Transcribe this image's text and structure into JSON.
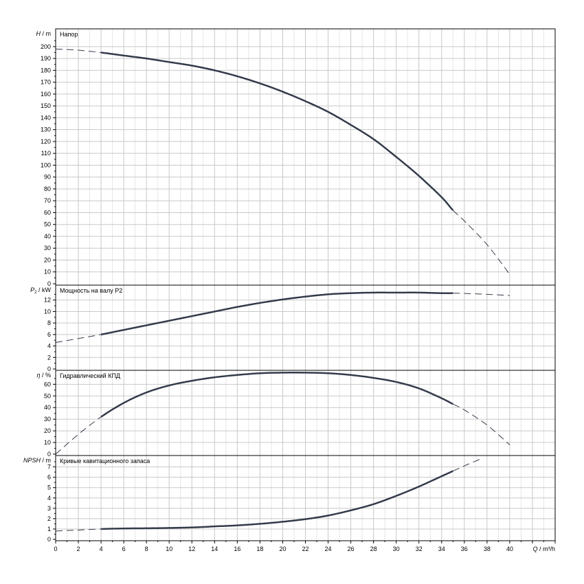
{
  "chart_data": {
    "type": "line",
    "grid": true,
    "x": {
      "label_q": "Q",
      "label_sep": " / ",
      "label_unit": "m³/h",
      "range": [
        0,
        44
      ],
      "ticks": [
        0,
        2,
        4,
        6,
        8,
        10,
        12,
        14,
        16,
        18,
        20,
        22,
        24,
        26,
        28,
        30,
        32,
        34,
        36,
        38,
        40
      ]
    },
    "panels": [
      {
        "id": "head",
        "ylabel_sym": "H",
        "ylabel_sub": "",
        "ylabel_unit": "m",
        "title": "Напор",
        "ylim": [
          0,
          215
        ],
        "yticks": [
          0,
          10,
          20,
          30,
          40,
          50,
          60,
          70,
          80,
          90,
          100,
          110,
          120,
          130,
          140,
          150,
          160,
          170,
          180,
          190,
          200
        ],
        "solid_range": [
          4,
          35
        ],
        "series": [
          {
            "x": [
              0,
              2,
              4,
              6,
              8,
              10,
              12,
              14,
              16,
              18,
              20,
              22,
              24,
              26,
              28,
              30,
              32,
              34,
              35,
              36,
              38,
              40
            ],
            "y": [
              198,
              197,
              195,
              192.5,
              190,
              187,
              184,
              180,
              175,
              169,
              162,
              154,
              145,
              134,
              122,
              107,
              91,
              73,
              62,
              53,
              33,
              8
            ]
          }
        ]
      },
      {
        "id": "power",
        "ylabel_sym": "P",
        "ylabel_sub": "2",
        "ylabel_unit": "kW",
        "title": "Мощность на валу P2",
        "ylim": [
          0,
          14.6
        ],
        "yticks": [
          0,
          2,
          4,
          6,
          8,
          10,
          12
        ],
        "solid_range": [
          4,
          35
        ],
        "series": [
          {
            "x": [
              0,
              2,
              4,
              6,
              8,
              10,
              12,
              14,
              16,
              18,
              20,
              22,
              24,
              26,
              28,
              30,
              32,
              34,
              35,
              36,
              38,
              40
            ],
            "y": [
              4.6,
              5.3,
              6.0,
              6.8,
              7.6,
              8.4,
              9.2,
              10.0,
              10.8,
              11.5,
              12.1,
              12.6,
              13.0,
              13.2,
              13.3,
              13.3,
              13.3,
              13.2,
              13.2,
              13.15,
              13.0,
              12.8
            ]
          }
        ]
      },
      {
        "id": "efficiency",
        "ylabel_sym": "η",
        "ylabel_sub": "",
        "ylabel_unit": "%",
        "title": "Гидравлический КПД",
        "ylim": [
          0,
          72
        ],
        "yticks": [
          0,
          10,
          20,
          30,
          40,
          50,
          60
        ],
        "solid_range": [
          4,
          35
        ],
        "series": [
          {
            "x": [
              0,
              2,
              4,
              6,
              8,
              10,
              12,
              14,
              16,
              18,
              20,
              22,
              24,
              26,
              28,
              30,
              32,
              34,
              35,
              36,
              38,
              40
            ],
            "y": [
              0,
              17,
              32,
              44,
              53,
              59,
              63,
              66,
              68,
              69.5,
              70,
              70,
              69.5,
              68,
              65.5,
              62,
              56.5,
              48,
              43,
              38,
              25,
              8
            ]
          }
        ]
      },
      {
        "id": "npsh",
        "ylabel_sym": "NPSH",
        "ylabel_sub": "",
        "ylabel_unit": "m",
        "title": "Кривые кавитационного запаса",
        "ylim": [
          0,
          8.1
        ],
        "yticks": [
          0,
          1,
          2,
          3,
          4,
          5,
          6,
          7
        ],
        "solid_range": [
          4,
          35
        ],
        "series": [
          {
            "x": [
              0,
              2,
              4,
              6,
              8,
              10,
              12,
              14,
              16,
              18,
              20,
              22,
              24,
              26,
              28,
              30,
              32,
              34,
              35,
              36,
              37.5
            ],
            "y": [
              0.8,
              0.9,
              1.0,
              1.05,
              1.07,
              1.1,
              1.15,
              1.25,
              1.35,
              1.5,
              1.7,
              1.95,
              2.3,
              2.8,
              3.4,
              4.2,
              5.1,
              6.1,
              6.6,
              7.1,
              7.8
            ]
          }
        ]
      }
    ]
  }
}
